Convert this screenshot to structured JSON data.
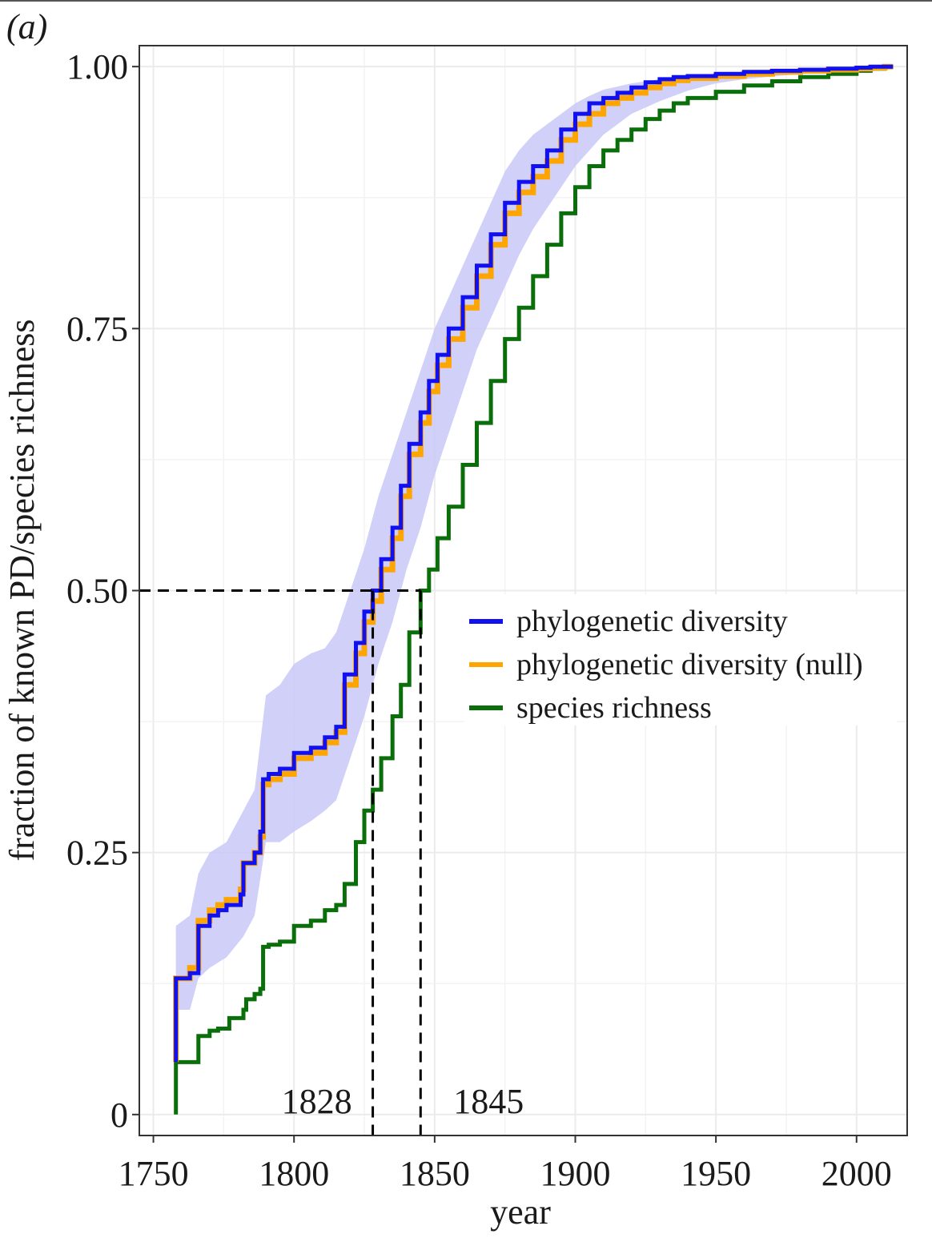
{
  "panel_label": "(a)",
  "chart_data": {
    "type": "line",
    "title": "",
    "xlabel": "year",
    "ylabel": "fraction of known PD/species richness",
    "xlim": [
      1745,
      2018
    ],
    "ylim": [
      -0.02,
      1.02
    ],
    "x_ticks": [
      1750,
      1800,
      1850,
      1900,
      1950,
      2000
    ],
    "x_tick_labels": [
      "1750",
      "1800",
      "1850",
      "1900",
      "1950",
      "2000"
    ],
    "y_ticks": [
      0,
      0.25,
      0.5,
      0.75,
      1.0
    ],
    "y_tick_labels": [
      "0",
      "0.25",
      "0.50",
      "0.75",
      "1.00"
    ],
    "grid": true,
    "legend_position": "right-center",
    "series": [
      {
        "name": "phylogenetic diversity",
        "color": "#1010f0",
        "x": [
          1758,
          1758,
          1763,
          1766,
          1767,
          1770,
          1773,
          1776,
          1781,
          1782,
          1786,
          1788,
          1789,
          1791,
          1795,
          1800,
          1806,
          1811,
          1815,
          1818,
          1822,
          1825,
          1828,
          1831,
          1835,
          1838,
          1841,
          1845,
          1848,
          1851,
          1855,
          1860,
          1865,
          1870,
          1875,
          1880,
          1885,
          1890,
          1895,
          1900,
          1905,
          1910,
          1915,
          1920,
          1925,
          1930,
          1935,
          1940,
          1950,
          1960,
          1970,
          1980,
          1990,
          2000,
          2005,
          2010,
          2013
        ],
        "y": [
          0.05,
          0.13,
          0.135,
          0.18,
          0.18,
          0.19,
          0.195,
          0.2,
          0.21,
          0.24,
          0.25,
          0.27,
          0.32,
          0.325,
          0.33,
          0.345,
          0.35,
          0.36,
          0.37,
          0.42,
          0.45,
          0.48,
          0.5,
          0.53,
          0.56,
          0.6,
          0.64,
          0.67,
          0.7,
          0.725,
          0.75,
          0.78,
          0.81,
          0.84,
          0.87,
          0.89,
          0.905,
          0.92,
          0.94,
          0.955,
          0.965,
          0.97,
          0.975,
          0.98,
          0.985,
          0.988,
          0.99,
          0.991,
          0.993,
          0.995,
          0.996,
          0.997,
          0.998,
          0.999,
          1.0,
          1.0,
          1.0
        ]
      },
      {
        "name": "phylogenetic diversity (null)",
        "color": "#ffa500",
        "x": [
          1758,
          1758,
          1763,
          1766,
          1767,
          1770,
          1773,
          1776,
          1781,
          1782,
          1786,
          1788,
          1789,
          1791,
          1795,
          1800,
          1806,
          1811,
          1815,
          1818,
          1822,
          1825,
          1828,
          1831,
          1835,
          1838,
          1841,
          1845,
          1848,
          1851,
          1855,
          1860,
          1865,
          1870,
          1875,
          1880,
          1885,
          1890,
          1895,
          1900,
          1905,
          1910,
          1915,
          1920,
          1925,
          1930,
          1935,
          1940,
          1950,
          1960,
          1970,
          1980,
          1990,
          2000,
          2005,
          2010,
          2013
        ],
        "y": [
          0.05,
          0.13,
          0.14,
          0.185,
          0.185,
          0.195,
          0.2,
          0.205,
          0.215,
          0.24,
          0.25,
          0.265,
          0.315,
          0.32,
          0.325,
          0.34,
          0.345,
          0.355,
          0.365,
          0.41,
          0.44,
          0.47,
          0.49,
          0.52,
          0.55,
          0.59,
          0.63,
          0.66,
          0.69,
          0.715,
          0.74,
          0.77,
          0.8,
          0.83,
          0.86,
          0.88,
          0.895,
          0.91,
          0.93,
          0.945,
          0.955,
          0.965,
          0.97,
          0.975,
          0.98,
          0.984,
          0.987,
          0.989,
          0.991,
          0.993,
          0.995,
          0.996,
          0.997,
          0.998,
          0.999,
          1.0,
          1.0
        ]
      },
      {
        "name": "species richness",
        "color": "#0a6e0a",
        "x": [
          1758,
          1758,
          1763,
          1766,
          1767,
          1770,
          1773,
          1777,
          1782,
          1783,
          1786,
          1788,
          1789,
          1791,
          1795,
          1800,
          1806,
          1811,
          1815,
          1818,
          1822,
          1825,
          1828,
          1831,
          1835,
          1838,
          1841,
          1845,
          1848,
          1851,
          1855,
          1860,
          1865,
          1870,
          1875,
          1880,
          1885,
          1890,
          1895,
          1900,
          1905,
          1910,
          1915,
          1920,
          1925,
          1930,
          1935,
          1940,
          1950,
          1960,
          1970,
          1980,
          1990,
          2000,
          2005,
          2010,
          2013
        ],
        "y": [
          0.0,
          0.05,
          0.05,
          0.075,
          0.075,
          0.08,
          0.082,
          0.092,
          0.1,
          0.11,
          0.115,
          0.12,
          0.16,
          0.162,
          0.165,
          0.18,
          0.185,
          0.195,
          0.2,
          0.22,
          0.26,
          0.29,
          0.31,
          0.34,
          0.38,
          0.41,
          0.46,
          0.5,
          0.52,
          0.55,
          0.58,
          0.62,
          0.66,
          0.7,
          0.74,
          0.77,
          0.8,
          0.83,
          0.86,
          0.885,
          0.905,
          0.92,
          0.93,
          0.94,
          0.95,
          0.958,
          0.965,
          0.97,
          0.976,
          0.982,
          0.986,
          0.99,
          0.993,
          0.996,
          0.998,
          1.0,
          1.0
        ]
      }
    ],
    "band": {
      "color": "#c8c8f8",
      "x": [
        1758,
        1763,
        1766,
        1770,
        1776,
        1782,
        1786,
        1790,
        1795,
        1800,
        1806,
        1811,
        1815,
        1820,
        1825,
        1830,
        1835,
        1840,
        1845,
        1850,
        1855,
        1860,
        1865,
        1870,
        1875,
        1880,
        1885,
        1890,
        1895,
        1900,
        1905,
        1910,
        1920,
        1930,
        1940,
        1950,
        1960,
        1980,
        2000,
        2013
      ],
      "upper": [
        0.18,
        0.19,
        0.23,
        0.25,
        0.26,
        0.29,
        0.31,
        0.4,
        0.41,
        0.43,
        0.44,
        0.445,
        0.46,
        0.5,
        0.54,
        0.59,
        0.63,
        0.67,
        0.71,
        0.75,
        0.78,
        0.81,
        0.84,
        0.87,
        0.9,
        0.92,
        0.935,
        0.945,
        0.955,
        0.965,
        0.972,
        0.978,
        0.984,
        0.988,
        0.99,
        0.992,
        0.994,
        0.996,
        0.998,
        1.0
      ],
      "lower": [
        0.1,
        0.1,
        0.13,
        0.14,
        0.15,
        0.17,
        0.19,
        0.26,
        0.26,
        0.27,
        0.28,
        0.29,
        0.3,
        0.34,
        0.38,
        0.43,
        0.47,
        0.52,
        0.56,
        0.61,
        0.65,
        0.69,
        0.73,
        0.76,
        0.79,
        0.82,
        0.845,
        0.865,
        0.885,
        0.905,
        0.92,
        0.935,
        0.955,
        0.967,
        0.977,
        0.984,
        0.988,
        0.993,
        0.997,
        1.0
      ]
    },
    "reference_lines": [
      {
        "type": "horizontal",
        "y": 0.5,
        "x_from": 1745,
        "x_to": 1845,
        "style": "dashed",
        "color": "#000000"
      },
      {
        "type": "vertical",
        "x": 1828,
        "y_from": -0.02,
        "y_to": 0.5,
        "style": "dashed",
        "color": "#000000"
      },
      {
        "type": "vertical",
        "x": 1845,
        "y_from": -0.02,
        "y_to": 0.5,
        "style": "dashed",
        "color": "#000000"
      }
    ],
    "annotations": [
      {
        "text": "1828",
        "x": 1828,
        "y": 0.0
      },
      {
        "text": "1845",
        "x": 1845,
        "y": 0.0
      }
    ]
  }
}
